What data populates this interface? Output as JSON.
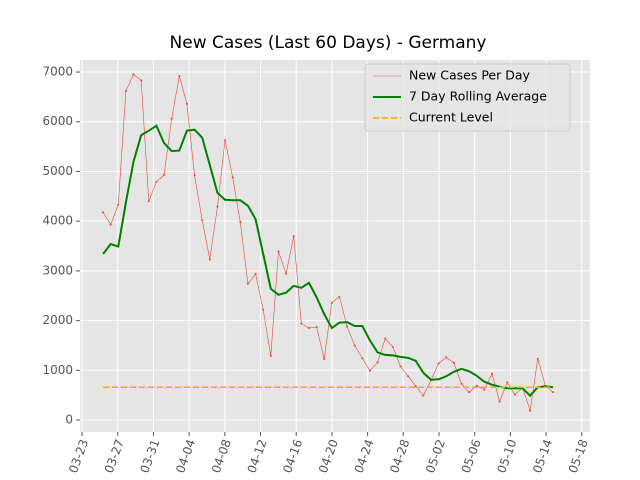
{
  "chart_data": {
    "type": "line",
    "title": "New Cases (Last 60 Days) - Germany",
    "series": [
      {
        "name": "New Cases Per Day",
        "color": "#e24a33",
        "style": "thin-marker",
        "values": [
          4180,
          3930,
          4330,
          6620,
          6950,
          6830,
          4400,
          4790,
          4930,
          6060,
          6920,
          6360,
          4920,
          4020,
          3230,
          4290,
          5630,
          4880,
          3980,
          2740,
          2940,
          2220,
          1290,
          3390,
          2940,
          3700,
          1940,
          1850,
          1870,
          1230,
          2360,
          2480,
          1880,
          1500,
          1240,
          990,
          1160,
          1640,
          1470,
          1080,
          880,
          680,
          490,
          800,
          1140,
          1260,
          1150,
          730,
          560,
          690,
          610,
          930,
          370,
          760,
          510,
          650,
          190,
          1230,
          690,
          560
        ]
      },
      {
        "name": "7 Day Rolling Average",
        "color": "#008000",
        "style": "thick",
        "values": [
          3340,
          3540,
          3490,
          4380,
          5200,
          5730,
          5820,
          5920,
          5570,
          5410,
          5420,
          5820,
          5840,
          5680,
          5130,
          4570,
          4430,
          4420,
          4420,
          4310,
          4040,
          3340,
          2640,
          2520,
          2560,
          2700,
          2660,
          2760,
          2470,
          2130,
          1850,
          1960,
          1970,
          1890,
          1890,
          1600,
          1360,
          1310,
          1300,
          1270,
          1250,
          1190,
          950,
          810,
          820,
          880,
          970,
          1030,
          980,
          890,
          770,
          710,
          670,
          640,
          640,
          640,
          490,
          660,
          680,
          660
        ]
      }
    ],
    "current_level": {
      "name": "Current Level",
      "color": "#ffa500",
      "value": 660
    },
    "xlim": [
      -3.02,
      63.85
    ],
    "xticks": [
      {
        "value": -2.75,
        "label": "03-23"
      },
      {
        "value": 1.93,
        "label": "03-27"
      },
      {
        "value": 6.61,
        "label": "03-31"
      },
      {
        "value": 11.29,
        "label": "04-04"
      },
      {
        "value": 15.97,
        "label": "04-08"
      },
      {
        "value": 20.65,
        "label": "04-12"
      },
      {
        "value": 25.33,
        "label": "04-16"
      },
      {
        "value": 30.01,
        "label": "04-20"
      },
      {
        "value": 34.69,
        "label": "04-24"
      },
      {
        "value": 39.37,
        "label": "04-28"
      },
      {
        "value": 44.05,
        "label": "05-02"
      },
      {
        "value": 48.73,
        "label": "05-06"
      },
      {
        "value": 53.41,
        "label": "05-10"
      },
      {
        "value": 58.09,
        "label": "05-14"
      },
      {
        "value": 62.77,
        "label": "05-18"
      }
    ],
    "ylim": [
      -241,
      7242
    ],
    "yticks": [
      0,
      1000,
      2000,
      3000,
      4000,
      5000,
      6000,
      7000
    ],
    "grid": true,
    "legend": "upper right"
  }
}
